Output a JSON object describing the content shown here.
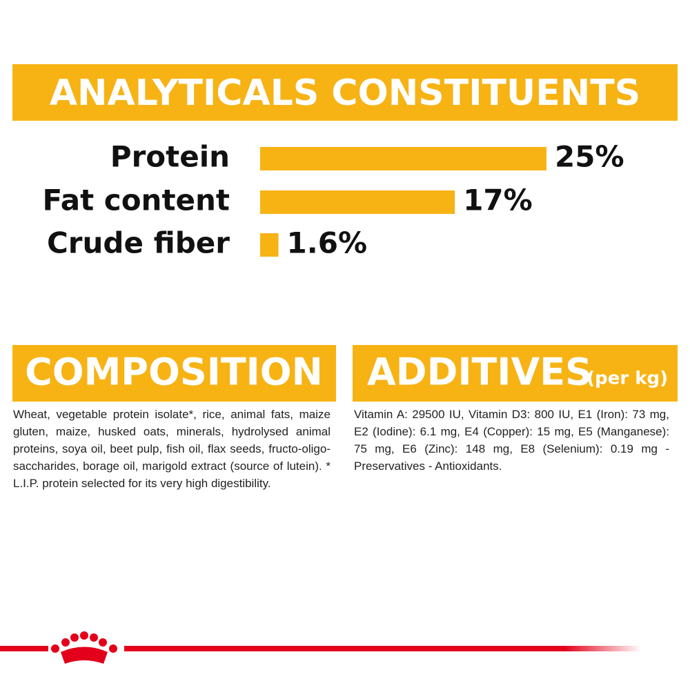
{
  "chart_data": {
    "type": "bar",
    "title": "ANALYTICALS CONSTITUENTS",
    "categories": [
      "Protein",
      "Fat content",
      "Crude fiber"
    ],
    "values": [
      25,
      17,
      1.6
    ],
    "value_labels": [
      "25%",
      "17%",
      "1.6%"
    ],
    "color": "#f7b314"
  },
  "composition": {
    "title": "COMPOSITION",
    "text": "Wheat, vegetable protein isolate*, rice, animal fats, maize gluten, maize, husked oats, minerals, hydrolysed animal proteins, soya oil, beet pulp, fish oil, flax seeds, fructo-oligo-saccharides, borage oil, marigold extract (source of lutein). * L.I.P. protein selected for its very high digestibility."
  },
  "additives": {
    "title": "ADDITIVES",
    "unit": "(per kg)",
    "text": "Vitamin A: 29500 IU, Vitamin D3: 800 IU, E1 (Iron): 73 mg, E2 (Iodine): 6.1 mg, E4 (Copper): 15 mg, E5 (Manganese): 75 mg, E6 (Zinc): 148 mg, E8 (Selenium): 0.19 mg - Preservatives - Antioxidants."
  }
}
